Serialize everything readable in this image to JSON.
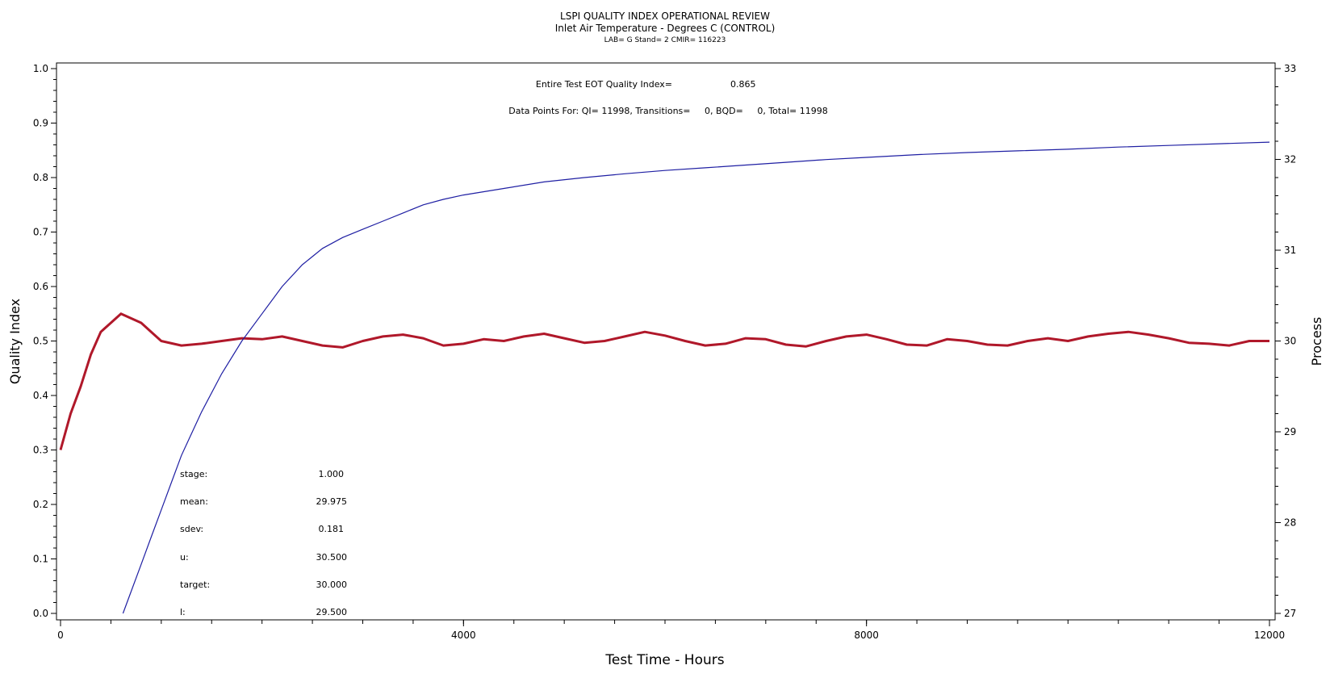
{
  "chart_data": {
    "type": "line",
    "title": "LSPI QUALITY INDEX OPERATIONAL REVIEW",
    "subtitle": "Inlet Air Temperature - Degrees C (CONTROL)",
    "subtitle2": "LAB= G Stand= 2 CMIR= 116223",
    "xlabel": "Test Time - Hours",
    "ylabel_left": "Quality Index",
    "ylabel_right": "Process",
    "xlim": [
      0,
      12000
    ],
    "ylim_left": [
      0.0,
      1.0
    ],
    "ylim_right": [
      27,
      33
    ],
    "x_ticks": [
      "0",
      "4000",
      "8000",
      "12000"
    ],
    "y_left_ticks": [
      "0.0",
      "0.1",
      "0.2",
      "0.3",
      "0.4",
      "0.5",
      "0.6",
      "0.7",
      "0.8",
      "0.9",
      "1.0"
    ],
    "y_right_ticks": [
      "27",
      "28",
      "29",
      "30",
      "31",
      "32",
      "33"
    ],
    "annotations": {
      "eot_label": "Entire Test EOT Quality Index=",
      "eot_value": "0.865",
      "datapoints": "Data Points For: QI= 11998, Transitions=     0, BQD=     0, Total= 11998"
    },
    "stats": [
      {
        "label": "stage:",
        "value": "1.000"
      },
      {
        "label": "mean:",
        "value": "29.975"
      },
      {
        "label": "sdev:",
        "value": "0.181"
      },
      {
        "label": "u:",
        "value": "30.500"
      },
      {
        "label": "target:",
        "value": "30.000"
      },
      {
        "label": "l:",
        "value": "29.500"
      }
    ],
    "series": [
      {
        "axis": "left",
        "color": "#1f1fa3",
        "x": [
          620,
          700,
          800,
          900,
          1000,
          1100,
          1200,
          1300,
          1400,
          1600,
          1800,
          2000,
          2200,
          2400,
          2600,
          2800,
          3000,
          3200,
          3400,
          3600,
          3800,
          4000,
          4400,
          4800,
          5200,
          5600,
          6000,
          6400,
          6800,
          7200,
          7600,
          8000,
          8500,
          9000,
          9500,
          10000,
          10500,
          11000,
          11500,
          12000
        ],
        "values": [
          0.0,
          0.04,
          0.09,
          0.14,
          0.19,
          0.24,
          0.29,
          0.33,
          0.37,
          0.44,
          0.5,
          0.55,
          0.6,
          0.64,
          0.67,
          0.69,
          0.705,
          0.72,
          0.735,
          0.75,
          0.76,
          0.768,
          0.78,
          0.792,
          0.8,
          0.807,
          0.813,
          0.818,
          0.823,
          0.828,
          0.833,
          0.837,
          0.842,
          0.846,
          0.849,
          0.852,
          0.856,
          0.859,
          0.862,
          0.865
        ]
      },
      {
        "axis": "right",
        "color": "#b0182a",
        "x": [
          0,
          100,
          200,
          300,
          400,
          500,
          600,
          700,
          800,
          900,
          1000,
          1200,
          1400,
          1600,
          1800,
          2000,
          2200,
          2400,
          2600,
          2800,
          3000,
          3200,
          3400,
          3600,
          3800,
          4000,
          4200,
          4400,
          4600,
          4800,
          5000,
          5200,
          5400,
          5600,
          5800,
          6000,
          6200,
          6400,
          6600,
          6800,
          7000,
          7200,
          7400,
          7600,
          7800,
          8000,
          8200,
          8400,
          8600,
          8800,
          9000,
          9200,
          9400,
          9600,
          9800,
          10000,
          10200,
          10400,
          10600,
          10800,
          11000,
          11200,
          11400,
          11600,
          11800,
          12000
        ],
        "values": [
          28.8,
          29.2,
          29.5,
          29.85,
          30.1,
          30.2,
          30.3,
          30.25,
          30.2,
          30.1,
          30.0,
          29.95,
          29.97,
          30.0,
          30.03,
          30.02,
          30.05,
          30.0,
          29.95,
          29.93,
          30.0,
          30.05,
          30.07,
          30.03,
          29.95,
          29.97,
          30.02,
          30.0,
          30.05,
          30.08,
          30.03,
          29.98,
          30.0,
          30.05,
          30.1,
          30.06,
          30.0,
          29.95,
          29.97,
          30.03,
          30.02,
          29.96,
          29.94,
          30.0,
          30.05,
          30.07,
          30.02,
          29.96,
          29.95,
          30.02,
          30.0,
          29.96,
          29.95,
          30.0,
          30.03,
          30.0,
          30.05,
          30.08,
          30.1,
          30.07,
          30.03,
          29.98,
          29.97,
          29.95,
          30.0,
          30.0
        ]
      }
    ]
  }
}
